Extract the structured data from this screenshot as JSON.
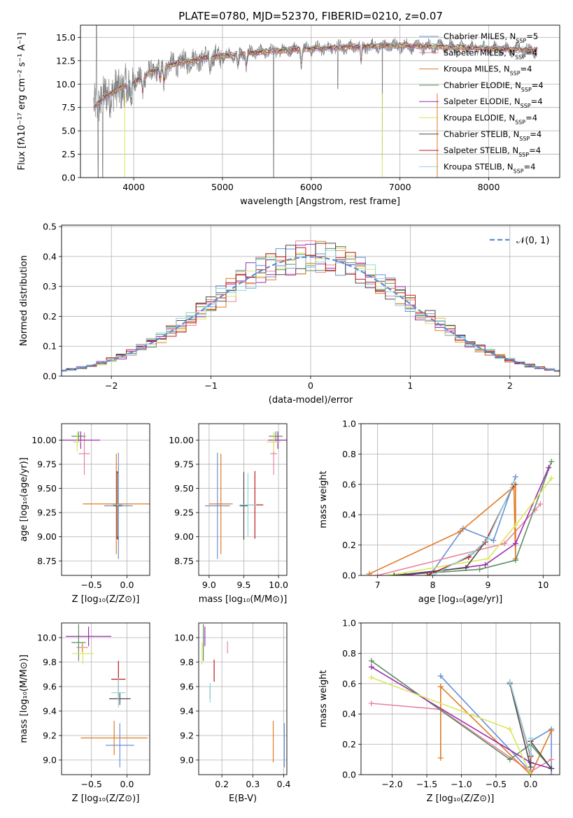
{
  "figure": {
    "title": "PLATE=0780, MJD=52370, FIBERID=0210, z=0.07"
  },
  "colors": {
    "data": "#808080",
    "series": [
      "#6a8fd6",
      "#e8849c",
      "#e07b24",
      "#5e8f62",
      "#9b2fae",
      "#dbe65b",
      "#4a4a4a",
      "#c01a1a",
      "#8fd6de"
    ]
  },
  "legend_models": [
    {
      "name": "Chabrier MILES",
      "suffix": "=5"
    },
    {
      "name": "Salpeter MILES",
      "suffix": "=4"
    },
    {
      "name": "Kroupa MILES",
      "suffix": "=4"
    },
    {
      "name": "Chabrier ELODIE",
      "suffix": "=4"
    },
    {
      "name": "Salpeter ELODIE",
      "suffix": "=4"
    },
    {
      "name": "Kroupa ELODIE",
      "suffix": "=4"
    },
    {
      "name": "Chabrier STELIB",
      "suffix": "=4"
    },
    {
      "name": "Salpeter STELIB",
      "suffix": "=4"
    },
    {
      "name": "Kroupa STELIB",
      "suffix": "=4"
    }
  ],
  "chart_data": [
    {
      "id": "spectrum",
      "type": "line",
      "xlabel": "wavelength [Angstrom, rest frame]",
      "ylabel": "Flux [fλ10⁻¹⁷ erg cm⁻² s⁻¹ A⁻¹]",
      "xlim": [
        3400,
        8800
      ],
      "ylim": [
        0,
        16.3
      ],
      "xticks": [
        4000,
        5000,
        6000,
        7000,
        8000
      ],
      "yticks": [
        0.0,
        2.5,
        5.0,
        7.5,
        10.0,
        12.5,
        15.0
      ],
      "legend_position": "right",
      "model_continuum": {
        "x": [
          3550,
          3650,
          3750,
          3900,
          4000,
          4200,
          4400,
          4600,
          4800,
          5000,
          5200,
          5500,
          6000,
          6500,
          7000,
          7400,
          8000,
          8800
        ],
        "y": [
          7.5,
          8.5,
          9.0,
          9.8,
          10.2,
          11.3,
          12.0,
          12.4,
          12.8,
          13.0,
          13.2,
          13.5,
          13.8,
          14.0,
          14.1,
          14.0,
          13.8,
          13.5
        ]
      }
    },
    {
      "id": "residuals",
      "type": "histogram",
      "xlabel": "(data-model)/error",
      "ylabel": "Normed distribution",
      "xlim": [
        -2.5,
        2.5
      ],
      "ylim": [
        0,
        0.505
      ],
      "xticks": [
        -2,
        -1,
        0,
        1,
        2
      ],
      "yticks": [
        0.0,
        0.1,
        0.2,
        0.3,
        0.4,
        0.5
      ],
      "legend": "𝒩(0, 1)",
      "legend_position": "top-right",
      "bin_width": 0.1
    },
    {
      "id": "age_vs_Z",
      "type": "errorbar",
      "xlabel": "Z [log₁₀(Z/Z⊙)]",
      "ylabel": "age  [log₁₀(age/yr)]",
      "xlim": [
        -0.92,
        0.32
      ],
      "ylim": [
        8.6,
        10.17
      ],
      "xticks": [
        -0.5,
        0.0
      ],
      "yticks": [
        8.75,
        9.0,
        9.25,
        9.5,
        9.75,
        10.0
      ],
      "points": [
        {
          "s": 0,
          "x": -0.12,
          "y": 9.32,
          "xe": 0.2,
          "ye": 0.55
        },
        {
          "s": 1,
          "x": -0.6,
          "y": 9.86,
          "xe": 0.08,
          "ye": 0.22
        },
        {
          "s": 2,
          "x": -0.15,
          "y": 9.34,
          "xe": 0.47,
          "ye": 0.52
        },
        {
          "s": 3,
          "x": -0.68,
          "y": 10.04,
          "xe": 0.1,
          "ye": 0.05
        },
        {
          "s": 4,
          "x": -0.65,
          "y": 10.0,
          "xe": 0.27,
          "ye": 0.09
        },
        {
          "s": 5,
          "x": -0.7,
          "y": 9.98,
          "xe": 0.06,
          "ye": 0.1
        },
        {
          "s": 6,
          "x": -0.13,
          "y": 9.32,
          "xe": 0.06,
          "ye": 0.35
        },
        {
          "s": 7,
          "x": -0.14,
          "y": 9.33,
          "xe": 0.05,
          "ye": 0.35
        },
        {
          "s": 8,
          "x": -0.13,
          "y": 9.33,
          "xe": 0.07,
          "ye": 0.33
        }
      ]
    },
    {
      "id": "age_vs_mass",
      "type": "errorbar",
      "xlabel": "mass [log₁₀(M/M⊙)]",
      "ylabel": "",
      "xlim": [
        8.85,
        10.12
      ],
      "ylim": [
        8.6,
        10.17
      ],
      "xticks": [
        9.0,
        9.5,
        10.0
      ],
      "yticks": [
        8.75,
        9.0,
        9.25,
        9.5,
        9.75,
        10.0
      ],
      "points": [
        {
          "s": 0,
          "x": 9.12,
          "y": 9.32,
          "xe": 0.18,
          "ye": 0.55
        },
        {
          "s": 1,
          "x": 9.93,
          "y": 9.86,
          "xe": 0.05,
          "ye": 0.22
        },
        {
          "s": 2,
          "x": 9.17,
          "y": 9.34,
          "xe": 0.17,
          "ye": 0.52
        },
        {
          "s": 3,
          "x": 9.96,
          "y": 10.04,
          "xe": 0.1,
          "ye": 0.05
        },
        {
          "s": 4,
          "x": 9.99,
          "y": 10.0,
          "xe": 0.14,
          "ye": 0.09
        },
        {
          "s": 5,
          "x": 9.93,
          "y": 9.98,
          "xe": 0.1,
          "ye": 0.1
        },
        {
          "s": 6,
          "x": 9.5,
          "y": 9.32,
          "xe": 0.06,
          "ye": 0.35
        },
        {
          "s": 7,
          "x": 9.66,
          "y": 9.33,
          "xe": 0.12,
          "ye": 0.35
        },
        {
          "s": 8,
          "x": 9.56,
          "y": 9.33,
          "xe": 0.12,
          "ye": 0.33
        }
      ]
    },
    {
      "id": "mass_weight_vs_age",
      "type": "line",
      "xlabel": "age  [log₁₀(age/yr)]",
      "ylabel": "mass weight",
      "xlim": [
        6.7,
        10.3
      ],
      "ylim": [
        0,
        1.0
      ],
      "xticks": [
        7,
        8,
        9,
        10
      ],
      "yticks": [
        0.0,
        0.2,
        0.4,
        0.6,
        0.8,
        1.0
      ],
      "series": [
        {
          "s": 0,
          "x": [
            7.95,
            8.55,
            9.1,
            9.5
          ],
          "y": [
            0.0,
            0.31,
            0.23,
            0.65
          ]
        },
        {
          "s": 1,
          "x": [
            7.0,
            9.3,
            9.85,
            9.95
          ],
          "y": [
            0.0,
            0.21,
            0.43,
            0.47
          ]
        },
        {
          "s": 2,
          "x": [
            6.85,
            8.5,
            9.45,
            9.47,
            9.5,
            9.5
          ],
          "y": [
            0.01,
            0.29,
            0.58,
            0.6,
            0.11,
            0.6
          ]
        },
        {
          "s": 3,
          "x": [
            7.3,
            8.85,
            9.5,
            10.15
          ],
          "y": [
            0.0,
            0.04,
            0.1,
            0.75
          ]
        },
        {
          "s": 4,
          "x": [
            7.5,
            8.95,
            9.5,
            10.1
          ],
          "y": [
            0.0,
            0.07,
            0.21,
            0.71
          ]
        },
        {
          "s": 5,
          "x": [
            7.2,
            9.0,
            9.5,
            10.15
          ],
          "y": [
            0.0,
            0.11,
            0.33,
            0.64
          ]
        },
        {
          "s": 6,
          "x": [
            7.3,
            8.6,
            8.95,
            9.47
          ],
          "y": [
            0.0,
            0.05,
            0.22,
            0.6
          ]
        },
        {
          "s": 7,
          "x": [
            7.9,
            8.65,
            8.95,
            9.47
          ],
          "y": [
            0.0,
            0.12,
            0.22,
            0.6
          ]
        },
        {
          "s": 8,
          "x": [
            8.0,
            8.7,
            9.0,
            9.47
          ],
          "y": [
            0.0,
            0.14,
            0.24,
            0.61
          ]
        }
      ]
    },
    {
      "id": "mass_vs_Z",
      "type": "errorbar",
      "xlabel": "Z [log₁₀(Z/Z⊙)]",
      "ylabel": "mass [log₁₀(M/M⊙)]",
      "xlim": [
        -0.92,
        0.32
      ],
      "ylim": [
        8.88,
        10.12
      ],
      "xticks": [
        -0.5,
        0.0
      ],
      "yticks": [
        9.0,
        9.2,
        9.4,
        9.6,
        9.8,
        10.0
      ],
      "points": [
        {
          "s": 0,
          "x": -0.1,
          "y": 9.12,
          "xe": 0.2,
          "ye": 0.18
        },
        {
          "s": 1,
          "x": -0.63,
          "y": 9.92,
          "xe": 0.08,
          "ye": 0.04
        },
        {
          "s": 2,
          "x": -0.18,
          "y": 9.18,
          "xe": 0.47,
          "ye": 0.14
        },
        {
          "s": 3,
          "x": -0.68,
          "y": 9.96,
          "xe": 0.1,
          "ye": 0.15
        },
        {
          "s": 4,
          "x": -0.54,
          "y": 10.01,
          "xe": 0.32,
          "ye": 0.08
        },
        {
          "s": 5,
          "x": -0.62,
          "y": 9.87,
          "xe": 0.15,
          "ye": 0.09
        },
        {
          "s": 6,
          "x": -0.1,
          "y": 9.5,
          "xe": 0.15,
          "ye": 0.05
        },
        {
          "s": 7,
          "x": -0.12,
          "y": 9.66,
          "xe": 0.1,
          "ye": 0.15
        },
        {
          "s": 8,
          "x": -0.12,
          "y": 9.55,
          "xe": 0.1,
          "ye": 0.12
        }
      ]
    },
    {
      "id": "mass_vs_ebv",
      "type": "errorbar",
      "xlabel": "E(B-V)",
      "ylabel": "",
      "xlim": [
        0.125,
        0.41
      ],
      "ylim": [
        8.88,
        10.12
      ],
      "xticks": [
        0.1,
        0.2,
        0.3,
        0.4
      ],
      "yticks": [
        9.0,
        9.2,
        9.4,
        9.6,
        9.8,
        10.0
      ],
      "points": [
        {
          "s": 0,
          "x": 0.402,
          "y": 9.12,
          "xe": 0,
          "ye": 0.18
        },
        {
          "s": 1,
          "x": 0.218,
          "y": 9.92,
          "xe": 0,
          "ye": 0.05
        },
        {
          "s": 2,
          "x": 0.366,
          "y": 9.15,
          "xe": 0,
          "ye": 0.17
        },
        {
          "s": 3,
          "x": 0.14,
          "y": 9.96,
          "xe": 0,
          "ye": 0.15
        },
        {
          "s": 4,
          "x": 0.145,
          "y": 10.01,
          "xe": 0,
          "ye": 0.08
        },
        {
          "s": 5,
          "x": 0.136,
          "y": 9.87,
          "xe": 0,
          "ye": 0.09
        },
        {
          "s": 6,
          "x": 0.162,
          "y": 9.55,
          "xe": 0,
          "ye": 0.05
        },
        {
          "s": 7,
          "x": 0.175,
          "y": 9.73,
          "xe": 0,
          "ye": 0.09
        },
        {
          "s": 8,
          "x": 0.162,
          "y": 9.55,
          "xe": 0,
          "ye": 0.08
        }
      ]
    },
    {
      "id": "mass_weight_vs_Z",
      "type": "line",
      "xlabel": "Z [log₁₀(Z/Z⊙)]",
      "ylabel": "mass weight",
      "xlim": [
        -2.45,
        0.42
      ],
      "ylim": [
        0,
        1.0
      ],
      "xticks": [
        -2.0,
        -1.5,
        -1.0,
        -0.5,
        0.0
      ],
      "yticks": [
        0.0,
        0.2,
        0.4,
        0.6,
        0.8,
        1.0
      ],
      "series": [
        {
          "s": 0,
          "x": [
            -1.3,
            0.0,
            0.0,
            0.3,
            0.3
          ],
          "y": [
            0.65,
            0.02,
            0.22,
            0.3,
            0.0
          ]
        },
        {
          "s": 1,
          "x": [
            -2.3,
            -1.3,
            0.0,
            0.3
          ],
          "y": [
            0.47,
            0.43,
            0.02,
            0.1
          ]
        },
        {
          "s": 2,
          "x": [
            -1.3,
            -1.3,
            -1.3,
            0.0,
            0.3
          ],
          "y": [
            0.11,
            0.58,
            0.58,
            0.0,
            0.29
          ]
        },
        {
          "s": 3,
          "x": [
            -2.3,
            -0.3,
            0.0,
            0.3
          ],
          "y": [
            0.75,
            0.1,
            0.2,
            0.04
          ]
        },
        {
          "s": 4,
          "x": [
            -2.3,
            0.0,
            0.3
          ],
          "y": [
            0.71,
            0.08,
            0.04
          ]
        },
        {
          "s": 5,
          "x": [
            -2.3,
            -0.3,
            0.0
          ],
          "y": [
            0.64,
            0.3,
            0.0
          ]
        },
        {
          "s": 6,
          "x": [
            -0.3,
            0.0,
            0.0,
            0.3
          ],
          "y": [
            0.6,
            0.05,
            0.22,
            0.04
          ]
        },
        {
          "s": 7,
          "x": [
            -0.3,
            0.0,
            0.0
          ],
          "y": [
            0.61,
            0.12,
            0.22
          ]
        },
        {
          "s": 8,
          "x": [
            -0.3,
            0.0,
            0.0
          ],
          "y": [
            0.61,
            0.13,
            0.24
          ]
        }
      ]
    }
  ]
}
